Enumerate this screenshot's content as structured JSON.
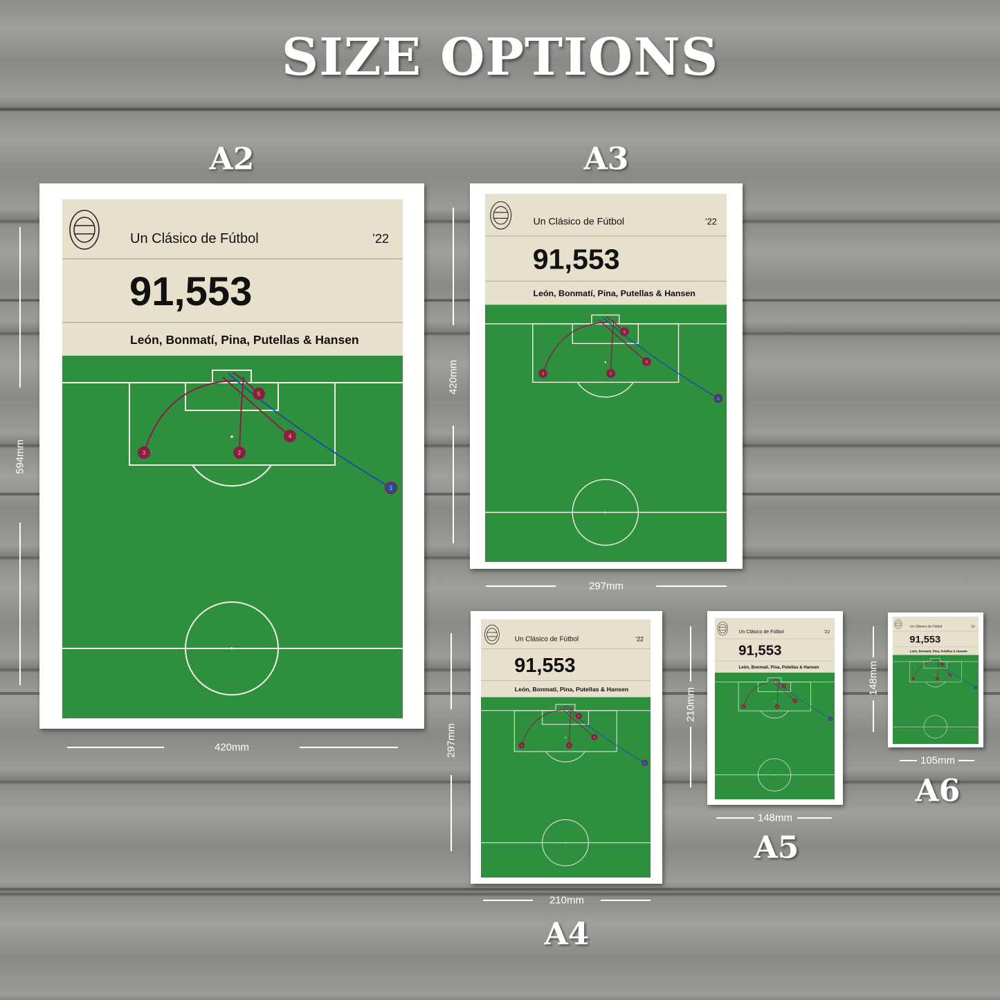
{
  "heading": "SIZE OPTIONS",
  "poster": {
    "series_title": "Un Clásico de Fútbol",
    "year": "’22",
    "attendance": "91,553",
    "scorers": "León, Bonmatí, Pina, Putellas & Hansen",
    "goal_markers": [
      "1",
      "2",
      "3",
      "4",
      "5"
    ],
    "colors": {
      "paper": "#e6e0cc",
      "pitch": "#2e8f3e",
      "line": "#f2efe4",
      "claret": "#8b1e45",
      "blue": "#1f4fa0",
      "ink": "#111111"
    }
  },
  "sizes": [
    {
      "label": "A2",
      "width": "420mm",
      "height": "594mm"
    },
    {
      "label": "A3",
      "width": "297mm",
      "height": "420mm"
    },
    {
      "label": "A4",
      "width": "210mm",
      "height": "297mm"
    },
    {
      "label": "A5",
      "width": "148mm",
      "height": "210mm"
    },
    {
      "label": "A6",
      "width": "105mm",
      "height": "148mm"
    }
  ]
}
